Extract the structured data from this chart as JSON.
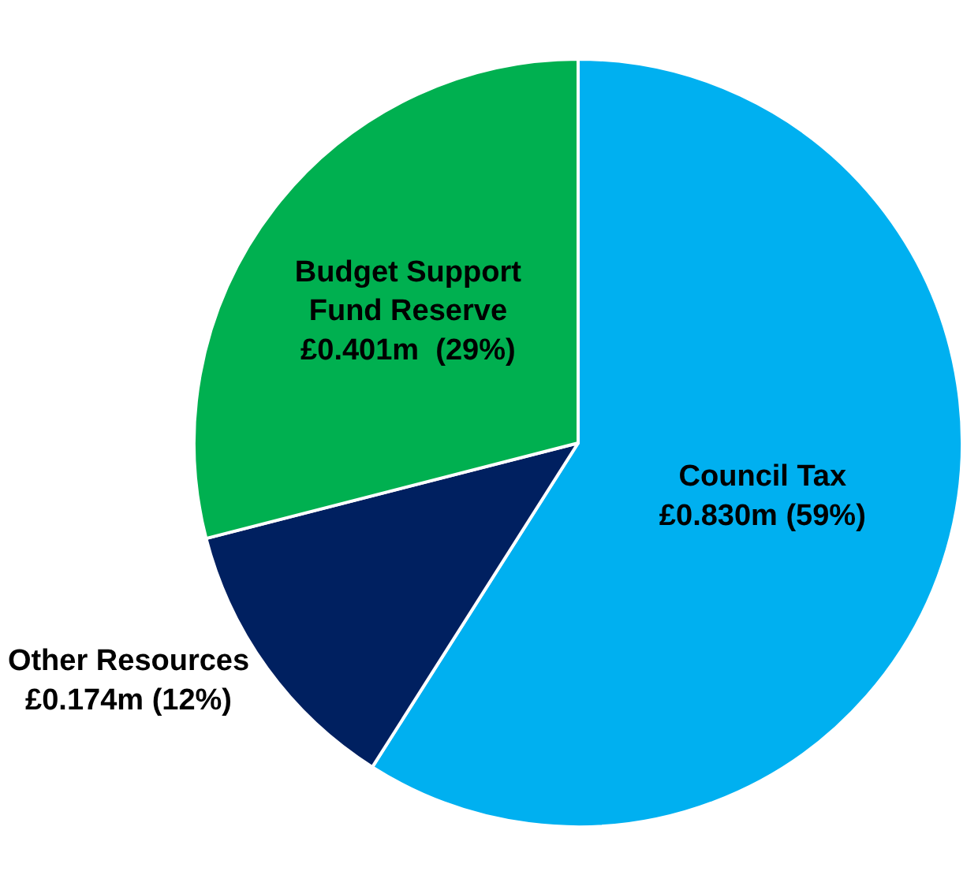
{
  "chart_data": {
    "type": "pie",
    "categories": [
      "Council Tax",
      "Other Resources",
      "Budget Support Fund Reserve"
    ],
    "values": [
      59,
      12,
      29
    ],
    "value_labels": [
      "£0.830m (59%)",
      "£0.174m (12%)",
      "£0.401m  (29%)"
    ],
    "colors": [
      "#00b0f0",
      "#002060",
      "#00b050"
    ],
    "legend": false
  }
}
